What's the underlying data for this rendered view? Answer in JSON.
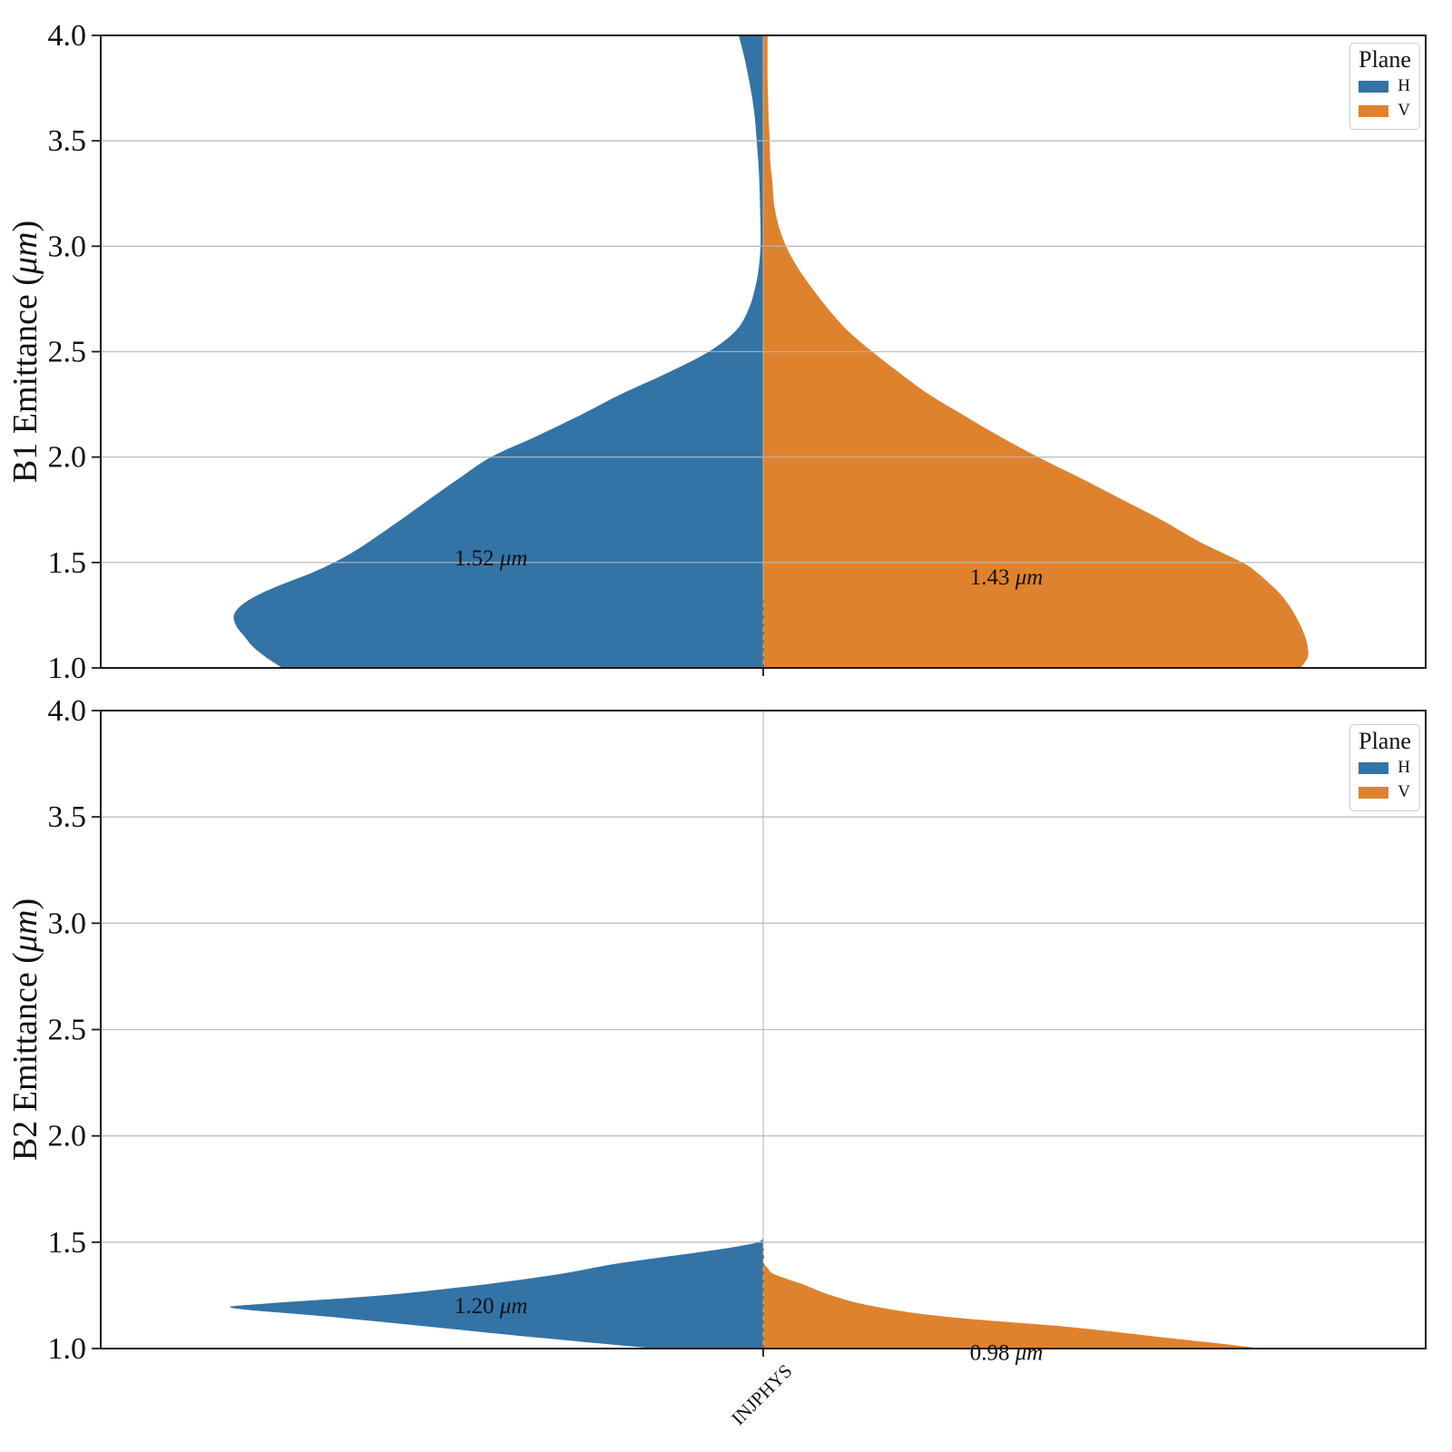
{
  "figure": {
    "background": "#ffffff",
    "grid_color": "#b5b5b5",
    "spine_color": "#1a1a1a",
    "inner_dash_color": "#2e2e2e"
  },
  "legend": {
    "title": "Plane",
    "entries": [
      {
        "label": "H",
        "color": "#3373A6"
      },
      {
        "label": "V",
        "color": "#DF822E"
      }
    ]
  },
  "x_axis": {
    "tick_label": "INJPHYS"
  },
  "chart_data": [
    {
      "type": "violin",
      "ylabel_prefix": "B1 Emittance (",
      "ylabel_unit": "μm",
      "ylabel_suffix": ")",
      "ylim": [
        1.0,
        4.0
      ],
      "yticks": [
        {
          "value": 4.0,
          "label": "4.0"
        },
        {
          "value": 3.5,
          "label": "3.5"
        },
        {
          "value": 3.0,
          "label": "3.0"
        },
        {
          "value": 2.5,
          "label": "2.5"
        },
        {
          "value": 2.0,
          "label": "2.0"
        },
        {
          "value": 1.5,
          "label": "1.5"
        },
        {
          "value": 1.0,
          "label": "1.0"
        }
      ],
      "category": "INJPHYS",
      "x_tick_labels_visible": false,
      "grid": true,
      "legend_position": "upper right",
      "inner_dash_range": [
        1.0,
        1.32
      ],
      "series": [
        {
          "name": "H",
          "side": "left",
          "color": "#3373A6",
          "mean": 1.52,
          "mean_number": "1.52",
          "mean_unit": "μm",
          "density": [
            [
              1.0,
              0.883
            ],
            [
              1.05,
              0.913
            ],
            [
              1.1,
              0.937
            ],
            [
              1.15,
              0.953
            ],
            [
              1.2,
              0.968
            ],
            [
              1.25,
              0.972
            ],
            [
              1.3,
              0.957
            ],
            [
              1.35,
              0.925
            ],
            [
              1.4,
              0.88
            ],
            [
              1.45,
              0.83
            ],
            [
              1.5,
              0.788
            ],
            [
              1.55,
              0.753
            ],
            [
              1.6,
              0.723
            ],
            [
              1.7,
              0.667
            ],
            [
              1.8,
              0.613
            ],
            [
              1.9,
              0.558
            ],
            [
              2.0,
              0.5
            ],
            [
              2.1,
              0.415
            ],
            [
              2.2,
              0.335
            ],
            [
              2.3,
              0.26
            ],
            [
              2.4,
              0.175
            ],
            [
              2.5,
              0.1
            ],
            [
              2.6,
              0.05
            ],
            [
              2.7,
              0.027
            ],
            [
              2.8,
              0.015
            ],
            [
              2.9,
              0.008
            ],
            [
              3.0,
              0.005
            ],
            [
              3.1,
              0.005
            ],
            [
              3.2,
              0.006
            ],
            [
              3.3,
              0.007
            ],
            [
              3.4,
              0.009
            ],
            [
              3.5,
              0.012
            ],
            [
              3.6,
              0.015
            ],
            [
              3.7,
              0.02
            ],
            [
              3.8,
              0.027
            ],
            [
              3.9,
              0.035
            ],
            [
              4.0,
              0.045
            ]
          ]
        },
        {
          "name": "V",
          "side": "right",
          "color": "#DF822E",
          "mean": 1.43,
          "mean_number": "1.43",
          "mean_unit": "μm",
          "density": [
            [
              1.0,
              0.987
            ],
            [
              1.05,
              1.0
            ],
            [
              1.1,
              1.0
            ],
            [
              1.15,
              0.995
            ],
            [
              1.2,
              0.987
            ],
            [
              1.25,
              0.977
            ],
            [
              1.3,
              0.965
            ],
            [
              1.35,
              0.95
            ],
            [
              1.4,
              0.93
            ],
            [
              1.45,
              0.908
            ],
            [
              1.5,
              0.88
            ],
            [
              1.6,
              0.8
            ],
            [
              1.7,
              0.733
            ],
            [
              1.8,
              0.658
            ],
            [
              1.9,
              0.583
            ],
            [
              2.0,
              0.505
            ],
            [
              2.1,
              0.433
            ],
            [
              2.2,
              0.367
            ],
            [
              2.3,
              0.303
            ],
            [
              2.4,
              0.25
            ],
            [
              2.5,
              0.2
            ],
            [
              2.6,
              0.155
            ],
            [
              2.7,
              0.12
            ],
            [
              2.8,
              0.09
            ],
            [
              2.9,
              0.063
            ],
            [
              3.0,
              0.042
            ],
            [
              3.1,
              0.028
            ],
            [
              3.2,
              0.02
            ],
            [
              3.3,
              0.017
            ],
            [
              3.4,
              0.013
            ],
            [
              3.5,
              0.012
            ],
            [
              3.6,
              0.01
            ],
            [
              3.7,
              0.009
            ],
            [
              3.8,
              0.008
            ],
            [
              3.9,
              0.008
            ],
            [
              4.0,
              0.008
            ]
          ]
        }
      ]
    },
    {
      "type": "violin",
      "ylabel_prefix": "B2 Emittance (",
      "ylabel_unit": "μm",
      "ylabel_suffix": ")",
      "ylim": [
        1.0,
        4.0
      ],
      "yticks": [
        {
          "value": 4.0,
          "label": "4.0"
        },
        {
          "value": 3.5,
          "label": "3.5"
        },
        {
          "value": 3.0,
          "label": "3.0"
        },
        {
          "value": 2.5,
          "label": "2.5"
        },
        {
          "value": 2.0,
          "label": "2.0"
        },
        {
          "value": 1.5,
          "label": "1.5"
        },
        {
          "value": 1.0,
          "label": "1.0"
        }
      ],
      "category": "INJPHYS",
      "x_tick_labels_visible": true,
      "grid": true,
      "legend_position": "upper right",
      "inner_dash_range": [
        1.0,
        1.47
      ],
      "series": [
        {
          "name": "H",
          "side": "left",
          "color": "#3373A6",
          "mean": 1.2,
          "mean_number": "1.20",
          "mean_unit": "μm",
          "density": [
            [
              1.0,
              0.197
            ],
            [
              1.05,
              0.408
            ],
            [
              1.1,
              0.602
            ],
            [
              1.15,
              0.8
            ],
            [
              1.19,
              0.973
            ],
            [
              1.21,
              0.92
            ],
            [
              1.25,
              0.7
            ],
            [
              1.3,
              0.517
            ],
            [
              1.35,
              0.375
            ],
            [
              1.4,
              0.267
            ],
            [
              1.45,
              0.125
            ],
            [
              1.48,
              0.047
            ],
            [
              1.5,
              0.01
            ],
            [
              1.52,
              0.0
            ]
          ]
        },
        {
          "name": "V",
          "side": "right",
          "color": "#DF822E",
          "mean": 0.98,
          "mean_number": "0.98",
          "mean_unit": "μm",
          "density": [
            [
              1.0,
              0.915
            ],
            [
              1.02,
              0.85
            ],
            [
              1.05,
              0.743
            ],
            [
              1.1,
              0.568
            ],
            [
              1.15,
              0.333
            ],
            [
              1.2,
              0.2
            ],
            [
              1.25,
              0.125
            ],
            [
              1.3,
              0.075
            ],
            [
              1.35,
              0.02
            ],
            [
              1.38,
              0.008
            ],
            [
              1.4,
              0.0
            ]
          ]
        }
      ]
    }
  ]
}
